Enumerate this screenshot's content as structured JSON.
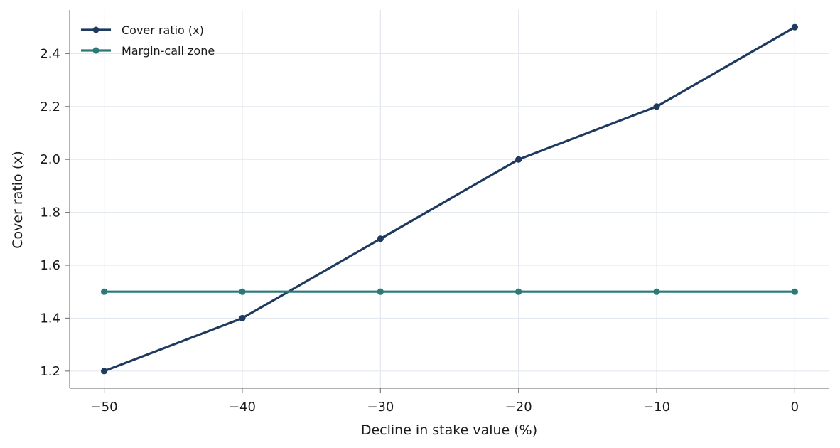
{
  "chart_data": {
    "type": "line",
    "title": "",
    "xlabel": "Decline in stake value (%)",
    "ylabel": "Cover ratio (x)",
    "x": [
      -50,
      -40,
      -30,
      -20,
      -10,
      0
    ],
    "x_ticks": [
      -50,
      -40,
      -30,
      -20,
      -10,
      0
    ],
    "x_tick_labels": [
      "−50",
      "−40",
      "−30",
      "−20",
      "−10",
      "0"
    ],
    "y_ticks": [
      1.2,
      1.4,
      1.6,
      1.8,
      2.0,
      2.2,
      2.4
    ],
    "y_tick_labels": [
      "1.2",
      "1.4",
      "1.6",
      "1.8",
      "2.0",
      "2.2",
      "2.4"
    ],
    "xlim": [
      -52.5,
      2.5
    ],
    "ylim": [
      1.135,
      2.565
    ],
    "grid": true,
    "legend_position": "top-left",
    "series": [
      {
        "name": "Cover ratio (x)",
        "color": "#1f3a5f",
        "values": [
          1.2,
          1.4,
          1.7,
          2.0,
          2.2,
          2.5
        ]
      },
      {
        "name": "Margin-call zone",
        "color": "#2a7a78",
        "values": [
          1.5,
          1.5,
          1.5,
          1.5,
          1.5,
          1.5
        ]
      }
    ]
  }
}
